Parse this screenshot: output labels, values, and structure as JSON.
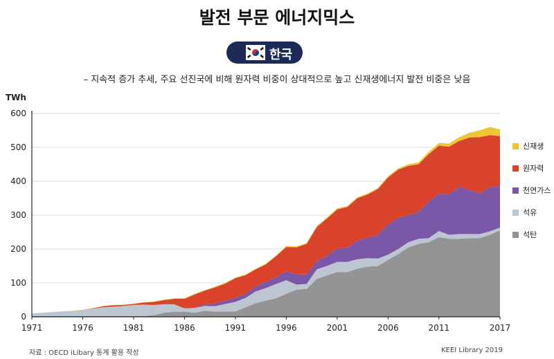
{
  "title": "발전 부문 에너지믹스",
  "country": "한국",
  "subtitle": "– 지속적 증가 추세, 주요 선진국에 비해 원자력 비중이 상대적으로 높고 신재생에너지 발전 비중은 낮음",
  "source": "자료 : OECD iLibary  통계 활용 작성",
  "credit": "KEEI Library 2019",
  "flag_colors": {
    "red": "#cd2e3a",
    "blue": "#0047a0",
    "black": "#000000"
  },
  "chart_data": {
    "type": "area",
    "stacked": true,
    "ylabel": "TWh",
    "xlabel": "",
    "xlim": [
      1971,
      2017
    ],
    "ylim": [
      0,
      600
    ],
    "x_ticks": [
      1971,
      1976,
      1981,
      1986,
      1991,
      1996,
      2001,
      2006,
      2011,
      2017
    ],
    "y_ticks": [
      0,
      100,
      200,
      300,
      400,
      500,
      600
    ],
    "legend_position": "right",
    "x": [
      1971,
      1972,
      1973,
      1974,
      1975,
      1976,
      1977,
      1978,
      1979,
      1980,
      1981,
      1982,
      1983,
      1984,
      1985,
      1986,
      1987,
      1988,
      1989,
      1990,
      1991,
      1992,
      1993,
      1994,
      1995,
      1996,
      1997,
      1998,
      1999,
      2000,
      2001,
      2002,
      2003,
      2004,
      2005,
      2006,
      2007,
      2008,
      2009,
      2010,
      2011,
      2012,
      2013,
      2014,
      2015,
      2016,
      2017
    ],
    "series": [
      {
        "name": "석탄",
        "color": "#949494",
        "values": [
          2,
          2,
          2,
          2,
          2,
          2,
          2,
          2,
          2,
          2,
          2,
          2,
          5,
          12,
          15,
          15,
          12,
          18,
          15,
          16,
          16,
          28,
          40,
          48,
          55,
          68,
          80,
          82,
          112,
          122,
          132,
          132,
          142,
          148,
          150,
          168,
          185,
          205,
          215,
          220,
          235,
          230,
          230,
          232,
          232,
          242,
          255
        ]
      },
      {
        "name": "석유",
        "color": "#bcc5d0",
        "values": [
          8,
          10,
          12,
          14,
          16,
          18,
          22,
          26,
          28,
          30,
          33,
          34,
          30,
          25,
          22,
          10,
          14,
          14,
          16,
          22,
          28,
          28,
          35,
          37,
          42,
          40,
          15,
          15,
          28,
          28,
          30,
          30,
          28,
          25,
          22,
          15,
          15,
          15,
          15,
          12,
          18,
          12,
          14,
          12,
          12,
          10,
          8
        ]
      },
      {
        "name": "천연가스",
        "color": "#7b57a8",
        "values": [
          0,
          0,
          0,
          0,
          0,
          0,
          0,
          0,
          0,
          0,
          0,
          0,
          0,
          0,
          0,
          0,
          0,
          5,
          8,
          10,
          12,
          12,
          15,
          18,
          20,
          26,
          30,
          28,
          25,
          30,
          40,
          42,
          55,
          60,
          70,
          90,
          92,
          80,
          80,
          108,
          110,
          120,
          140,
          130,
          120,
          130,
          122
        ]
      },
      {
        "name": "원자력",
        "color": "#d9432b",
        "values": [
          0,
          0,
          0,
          0,
          0,
          0,
          1,
          3,
          4,
          3,
          3,
          6,
          9,
          12,
          16,
          28,
          40,
          40,
          48,
          50,
          58,
          55,
          50,
          52,
          62,
          72,
          80,
          90,
          100,
          110,
          115,
          120,
          125,
          128,
          135,
          138,
          142,
          145,
          140,
          140,
          142,
          140,
          135,
          155,
          166,
          154,
          148
        ]
      },
      {
        "name": "신재생",
        "color": "#eec534",
        "values": [
          0,
          0,
          0,
          0,
          0,
          1,
          1,
          1,
          1,
          1,
          1,
          1,
          1,
          2,
          2,
          2,
          2,
          2,
          2,
          2,
          2,
          2,
          2,
          2,
          2,
          3,
          3,
          3,
          3,
          3,
          3,
          3,
          3,
          3,
          3,
          4,
          4,
          5,
          6,
          7,
          8,
          9,
          11,
          14,
          20,
          24,
          20
        ]
      }
    ],
    "overlay_gap_color": "#4d6f99"
  }
}
